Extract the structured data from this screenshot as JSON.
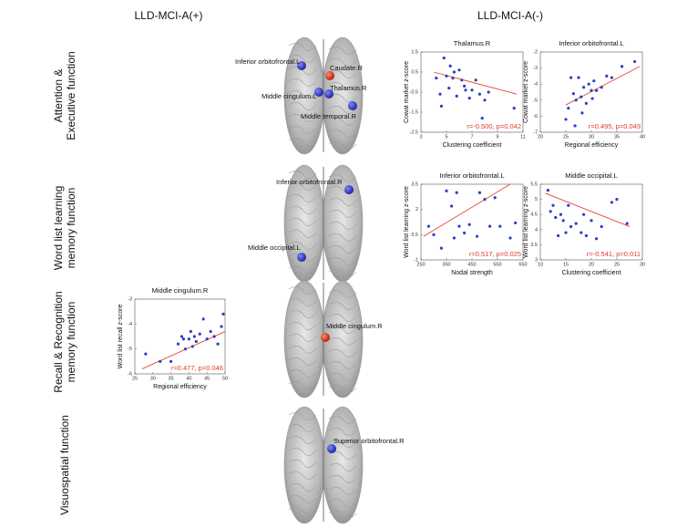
{
  "headers": [
    "LLD-MCI-A(+)",
    "LLD-MCI-A(-)"
  ],
  "rows": [
    "Attention & Executive function",
    "Word list learning memory function",
    "Recall & Recognition memory function",
    "Visuospatial function"
  ],
  "brains": [
    {
      "labels": [
        "Inferior orbitofrontal.L",
        "Caudate.R",
        "Thalamus.R",
        "Middle cingulum.L",
        "Middle temporal.R"
      ]
    },
    {
      "labels": [
        "Inferior orbitofrontal.R",
        "Middle occipital.L"
      ]
    },
    {
      "labels": [
        "Middle cingulum.R"
      ]
    },
    {
      "labels": [
        "Superior orbitofrontal.R"
      ]
    }
  ],
  "chart_data": [
    {
      "type": "scatter",
      "title": "Thalamus.R",
      "x_label": "Clustering coefficient",
      "y_label": "Cowat market z-score",
      "annotation": "r=-0.500, p=0.042",
      "color": "#2f3fc0",
      "fit_color": "#e8453c",
      "x": [
        4.2,
        4.5,
        4.8,
        5.0,
        5.2,
        5.3,
        5.5,
        5.8,
        6.0,
        6.2,
        6.5,
        6.8,
        7.0,
        7.3,
        7.6,
        8.0,
        8.3,
        4.6,
        5.6,
        6.4,
        7.8,
        10.3
      ],
      "values": [
        0.2,
        -0.6,
        1.2,
        0.3,
        -0.3,
        0.8,
        0.2,
        -0.7,
        0.6,
        0.1,
        -0.4,
        -0.8,
        -0.4,
        0.1,
        -0.6,
        -0.9,
        -0.5,
        -1.2,
        0.5,
        -0.2,
        -1.8,
        -1.3
      ],
      "fit": {
        "x": [
          4,
          10.5
        ],
        "values": [
          0.5,
          -0.6
        ]
      },
      "xlim": [
        3,
        11
      ],
      "xticks": [
        3,
        5,
        7,
        9,
        11
      ],
      "ylim": [
        -2.5,
        1.5
      ],
      "yticks": [
        -2.5,
        -1.5,
        -0.5,
        0.5,
        1.5
      ]
    },
    {
      "type": "scatter",
      "title": "Inferior orbitofrontal.L",
      "x_label": "Regional efficiency",
      "y_label": "Cowat market z-score",
      "annotation": "r=0.495, p=0.049",
      "color": "#2f3fc0",
      "fit_color": "#e8453c",
      "x": [
        25,
        25.5,
        26,
        26.5,
        27,
        27.5,
        28,
        28.5,
        29,
        29.5,
        30,
        30.5,
        31,
        32,
        33,
        34,
        36,
        38.5,
        26.8,
        28.2,
        30.2
      ],
      "values": [
        -6.2,
        -5.5,
        -3.6,
        -4.6,
        -5.0,
        -3.6,
        -4.8,
        -4.2,
        -5.2,
        -4.0,
        -4.4,
        -3.8,
        -4.4,
        -4.2,
        -3.5,
        -3.6,
        -2.9,
        -2.6,
        -6.6,
        -5.8,
        -4.9
      ],
      "fit": {
        "x": [
          25,
          39.5
        ],
        "values": [
          -5.3,
          -2.9
        ]
      },
      "xlim": [
        20,
        40
      ],
      "xticks": [
        20,
        25,
        30,
        35,
        40
      ],
      "ylim": [
        -7,
        -2
      ],
      "yticks": [
        -7,
        -6,
        -5,
        -4,
        -3,
        -2
      ]
    },
    {
      "type": "scatter",
      "title": "Inferior orbitofrontal.L",
      "x_label": "Nodal strength",
      "y_label": "Word list learning z-score",
      "annotation": "r=0.517, p=0.025",
      "color": "#2f3fc0",
      "fit_color": "#e8453c",
      "x": [
        280,
        300,
        330,
        350,
        370,
        380,
        390,
        400,
        420,
        440,
        470,
        480,
        500,
        520,
        540,
        560,
        600,
        620
      ],
      "values": [
        1.0,
        0.5,
        -0.3,
        3.1,
        2.2,
        0.3,
        3.0,
        1.0,
        0.6,
        1.1,
        0.4,
        3.0,
        2.6,
        1.0,
        2.7,
        1.0,
        0.3,
        1.2
      ],
      "fit": {
        "x": [
          260,
          600
        ],
        "values": [
          0.4,
          3.5
        ]
      },
      "xlim": [
        250,
        650
      ],
      "xticks": [
        250,
        350,
        450,
        550,
        650
      ],
      "ylim": [
        -1,
        3.5
      ],
      "yticks": [
        -1,
        0.5,
        2,
        3.5
      ]
    },
    {
      "type": "scatter",
      "title": "Middle occipital.L",
      "x_label": "Clustering coefficient",
      "y_label": "Word list learning z-score",
      "annotation": "r=-0.541, p=0.011",
      "color": "#2f3fc0",
      "fit_color": "#e8453c",
      "x": [
        11.5,
        12,
        12.5,
        13,
        13.5,
        14,
        14.5,
        15,
        15.5,
        16,
        17,
        18,
        18.5,
        19,
        20,
        21,
        22,
        24,
        25,
        27
      ],
      "values": [
        5.3,
        4.6,
        4.8,
        4.4,
        3.8,
        4.5,
        4.3,
        3.9,
        4.8,
        4.1,
        4.2,
        3.9,
        4.5,
        3.8,
        4.3,
        3.7,
        4.1,
        4.9,
        5.0,
        4.2
      ],
      "fit": {
        "x": [
          11,
          27.5
        ],
        "values": [
          5.2,
          4.1
        ]
      },
      "xlim": [
        10,
        30
      ],
      "xticks": [
        10,
        15,
        20,
        25,
        30
      ],
      "ylim": [
        3,
        5.5
      ],
      "yticks": [
        3,
        3.5,
        4,
        4.5,
        5,
        5.5
      ]
    },
    {
      "type": "scatter",
      "title": "Middle cingulum.R",
      "x_label": "Regional efficiency",
      "y_label": "Word list recall z-score",
      "annotation": "r=0.477, p=0.046",
      "color": "#2f3fc0",
      "fit_color": "#e8453c",
      "x": [
        28,
        32,
        35,
        37,
        38,
        38.5,
        39,
        40,
        40.5,
        41,
        41.5,
        42,
        43,
        44,
        45,
        46,
        47,
        48,
        49,
        49.5
      ],
      "values": [
        -5.2,
        -5.5,
        -5.5,
        -4.8,
        -4.5,
        -4.6,
        -5.0,
        -4.6,
        -4.3,
        -4.9,
        -4.5,
        -4.7,
        -4.4,
        -3.8,
        -4.6,
        -4.3,
        -4.5,
        -4.8,
        -4.1,
        -3.6
      ],
      "fit": {
        "x": [
          27,
          50
        ],
        "values": [
          -5.8,
          -4.3
        ]
      },
      "xlim": [
        25,
        50
      ],
      "xticks": [
        25,
        30,
        35,
        40,
        45,
        50
      ],
      "ylim": [
        -6,
        -3
      ],
      "yticks": [
        -6,
        -5,
        -4,
        -3
      ]
    }
  ]
}
